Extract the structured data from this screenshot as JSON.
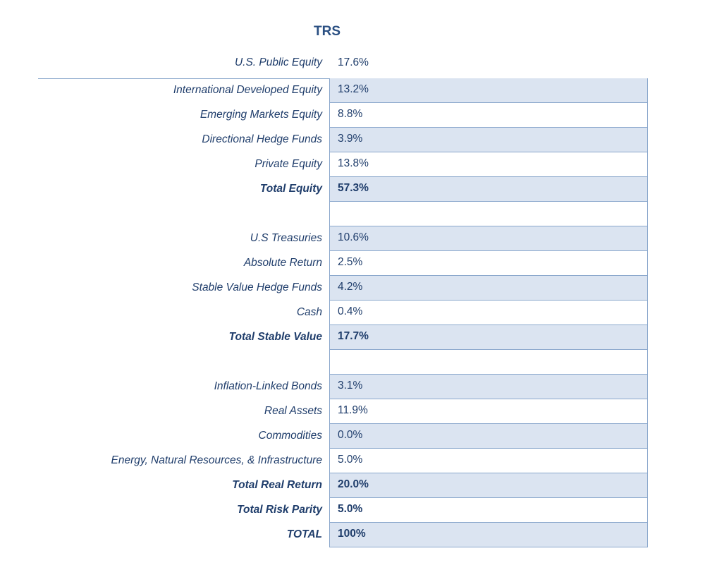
{
  "title": "TRS",
  "header_row": {
    "label": "U.S. Public Equity",
    "value": "17.6%"
  },
  "rows": [
    {
      "label": "International Developed Equity",
      "value": "13.2%"
    },
    {
      "label": "Emerging Markets Equity",
      "value": "8.8%"
    },
    {
      "label": "Directional Hedge Funds",
      "value": "3.9%"
    },
    {
      "label": "Private Equity",
      "value": "13.8%"
    },
    {
      "label": "Total Equity",
      "value": "57.3%"
    },
    {
      "label": "",
      "value": ""
    },
    {
      "label": "U.S Treasuries",
      "value": "10.6%"
    },
    {
      "label": "Absolute Return",
      "value": "2.5%"
    },
    {
      "label": "Stable Value Hedge Funds",
      "value": "4.2%"
    },
    {
      "label": "Cash",
      "value": "0.4%"
    },
    {
      "label": "Total Stable Value",
      "value": "17.7%"
    },
    {
      "label": "",
      "value": ""
    },
    {
      "label": "Inflation-Linked Bonds",
      "value": "3.1%"
    },
    {
      "label": "Real Assets",
      "value": "11.9%"
    },
    {
      "label": "Commodities",
      "value": "0.0%"
    },
    {
      "label": "Energy, Natural Resources, & Infrastructure",
      "value": "5.0%"
    },
    {
      "label": "Total Real Return",
      "value": "20.0%"
    },
    {
      "label": "Total Risk Parity",
      "value": "5.0%"
    },
    {
      "label": "TOTAL",
      "value": "100%"
    }
  ],
  "colors": {
    "text": "#1f3d6b",
    "title": "#2a4f82",
    "shade": "#dbe4f1",
    "border": "#8aa7cc"
  }
}
